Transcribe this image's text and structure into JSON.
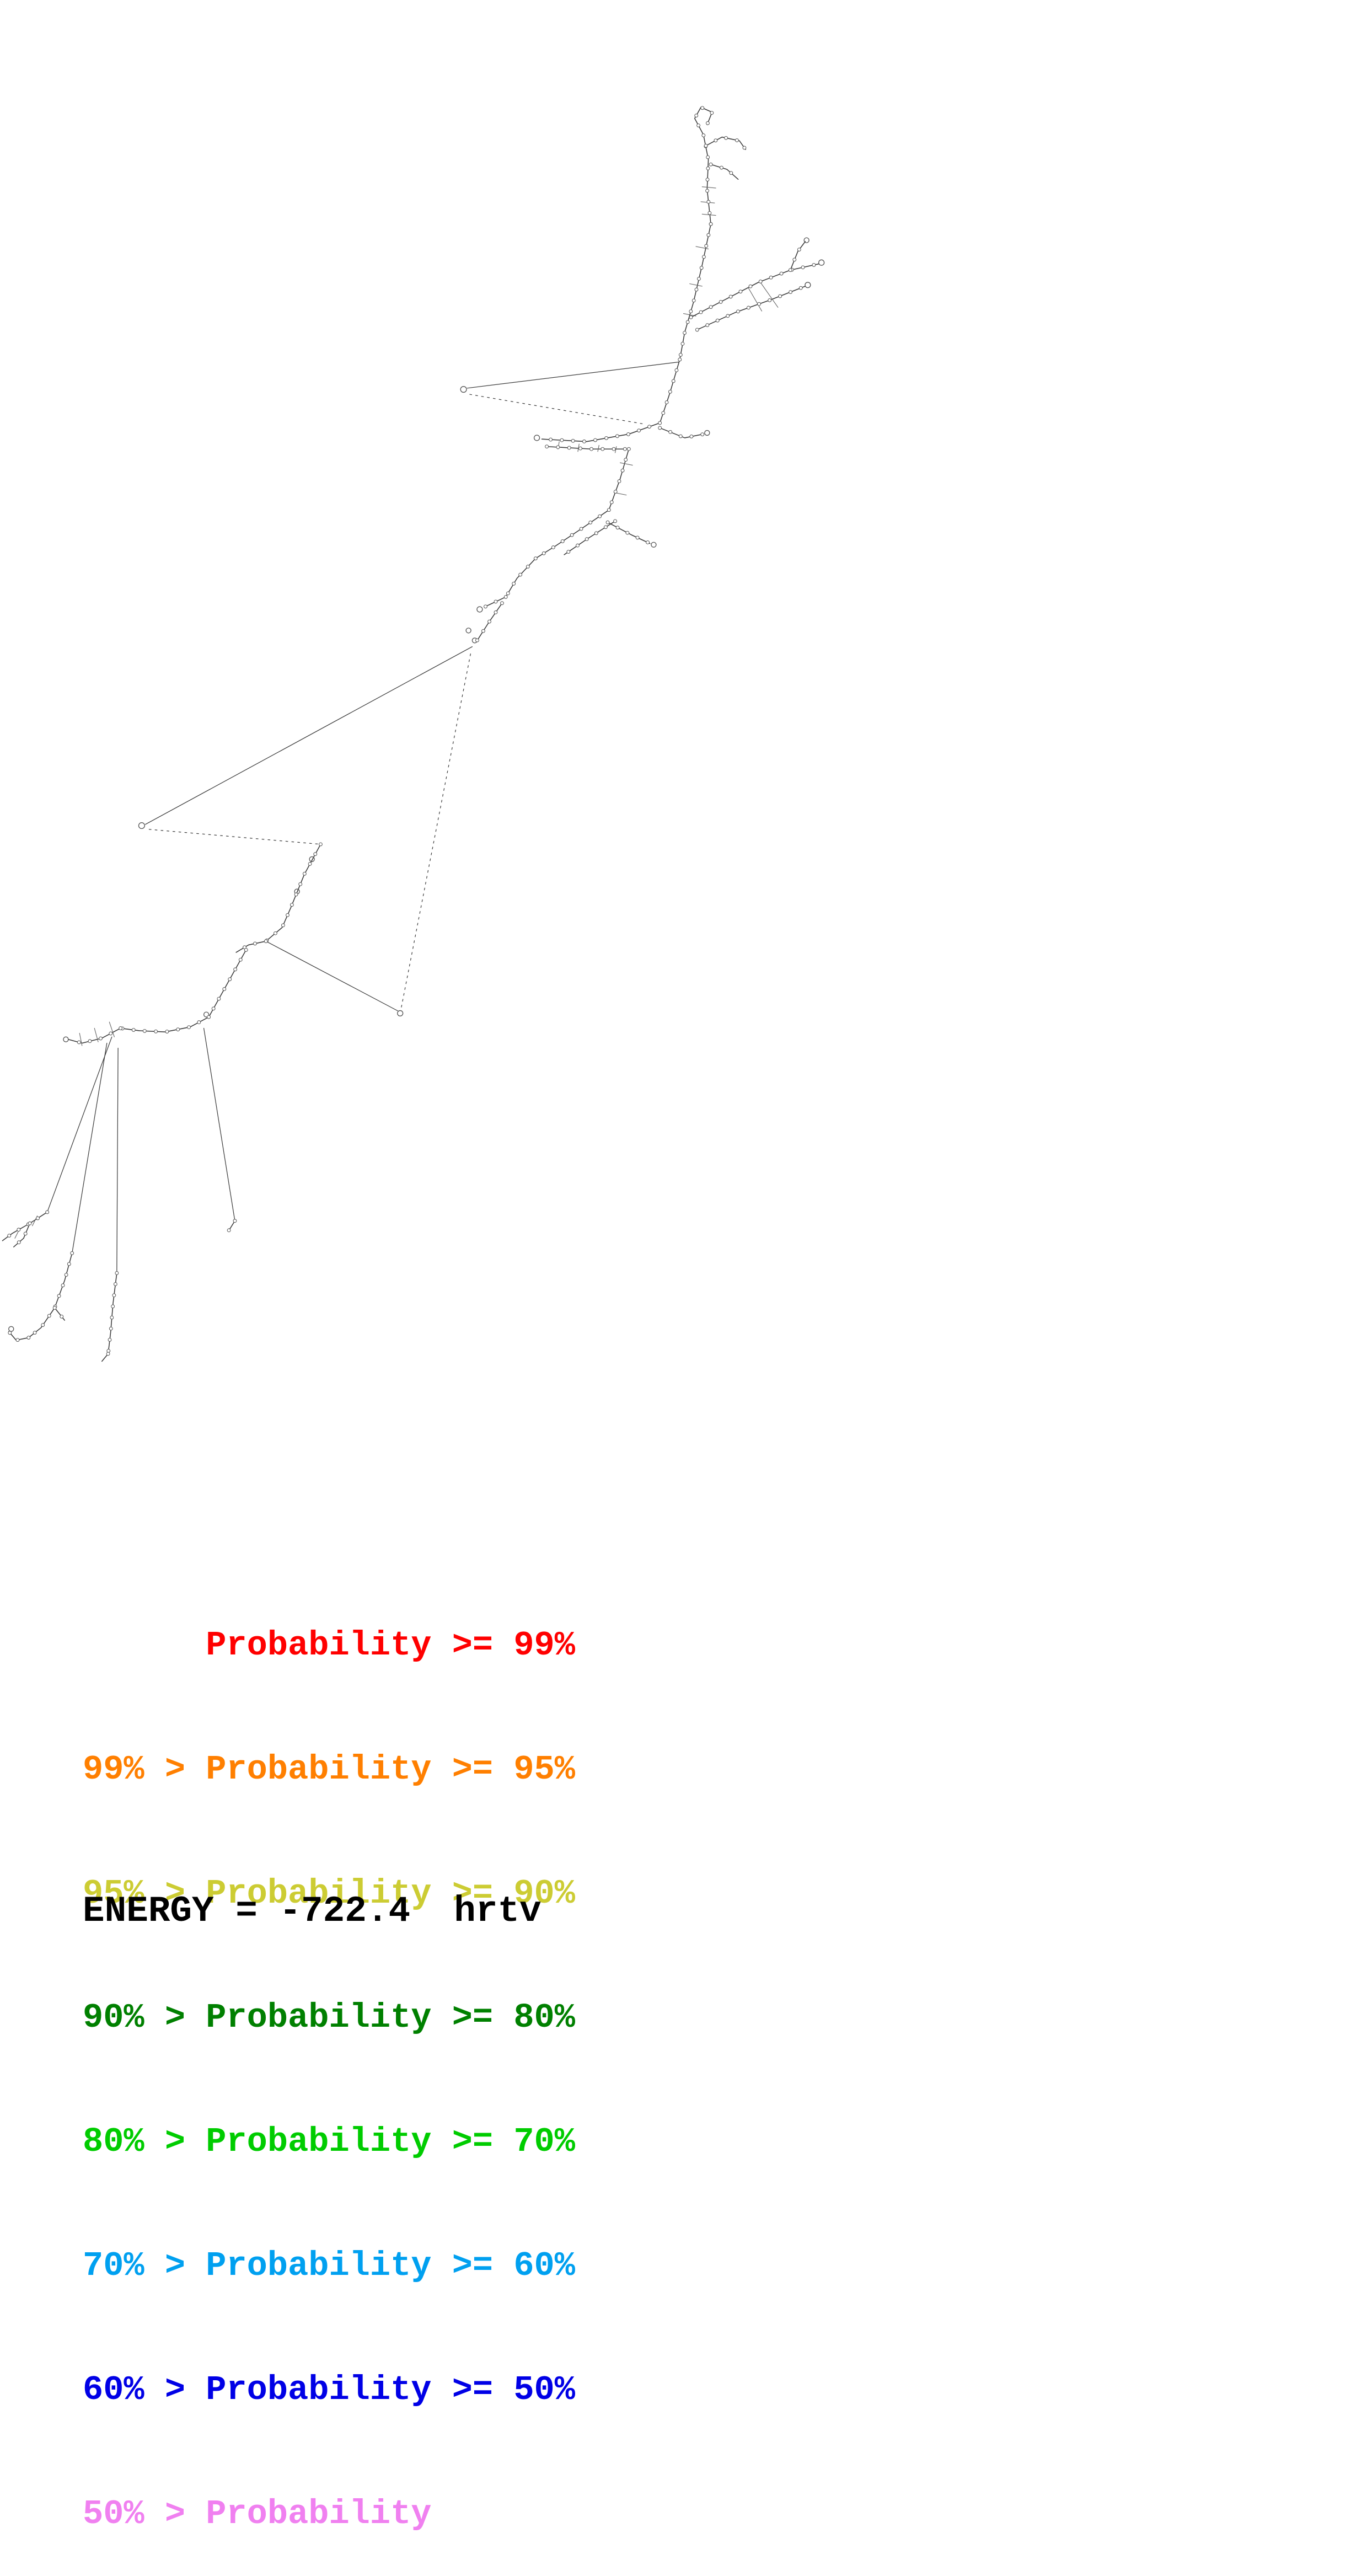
{
  "page": {
    "background": "#ffffff"
  },
  "diagram": {
    "type": "rna-secondary-structure-plot",
    "stroke_color": "#3c3c3c"
  },
  "legend": {
    "lines": [
      {
        "text": "      Probability >= 99%",
        "color": "#ff0000"
      },
      {
        "text": "99% > Probability >= 95%",
        "color": "#ff7f00"
      },
      {
        "text": "95% > Probability >= 90%",
        "color": "#cccc33"
      },
      {
        "text": "90% > Probability >= 80%",
        "color": "#008000"
      },
      {
        "text": "80% > Probability >= 70%",
        "color": "#00cc00"
      },
      {
        "text": "70% > Probability >= 60%",
        "color": "#00a0f0"
      },
      {
        "text": "60% > Probability >= 50%",
        "color": "#0000e6"
      },
      {
        "text": "50% > Probability",
        "color": "#f080f0"
      }
    ]
  },
  "energy": {
    "label": "ENERGY = -722.4  hrtv"
  }
}
